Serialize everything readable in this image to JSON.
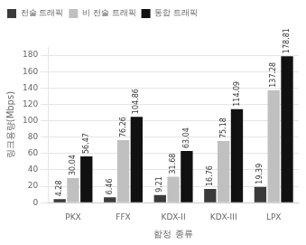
{
  "chart_data": {
    "type": "bar",
    "categories": [
      "PKX",
      "FFX",
      "KDX-II",
      "KDX-III",
      "LPX"
    ],
    "series": [
      {
        "name": "전술 트래픽",
        "color": "#3a3a3a",
        "values": [
          4.28,
          6.46,
          9.21,
          16.76,
          19.39
        ]
      },
      {
        "name": "비 전술 트래픽",
        "color": "#c0c0c0",
        "values": [
          30.04,
          76.26,
          31.68,
          75.18,
          137.28
        ]
      },
      {
        "name": "통합 트래픽",
        "color": "#111111",
        "values": [
          56.47,
          104.86,
          63.04,
          114.09,
          178.81
        ]
      }
    ],
    "xlabel": "함정 종류",
    "ylabel": "링크용량(Mbps)",
    "ylim": [
      0,
      190
    ],
    "yticks": [
      0,
      20,
      40,
      60,
      80,
      100,
      120,
      140,
      160,
      180
    ],
    "grid": true,
    "legend": "upper left",
    "data_labels": true
  }
}
